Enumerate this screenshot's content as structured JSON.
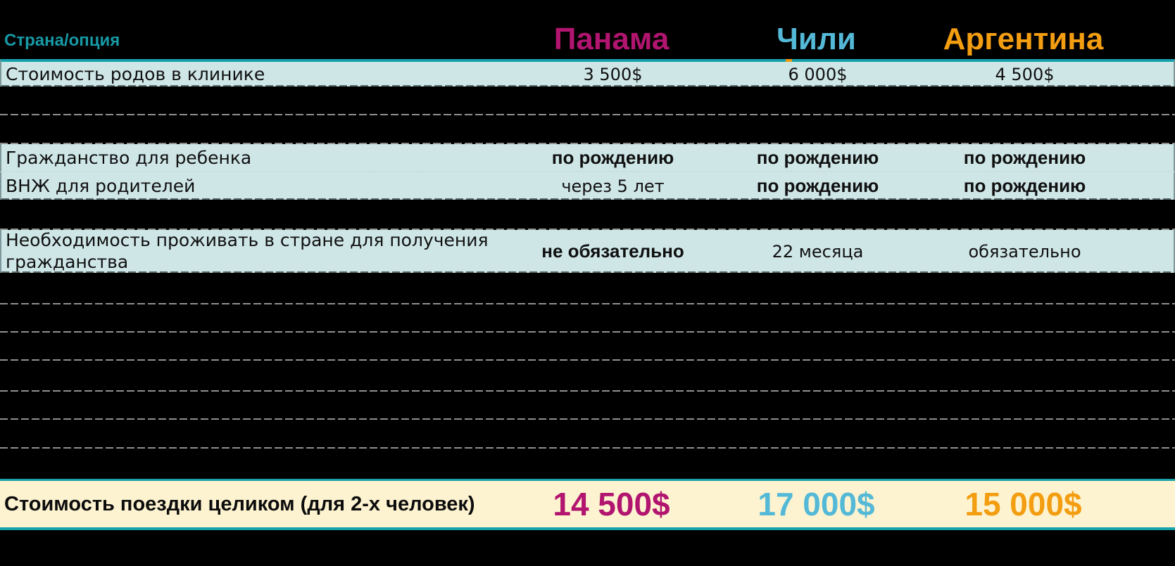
{
  "colors": {
    "accent_teal": "#17a2ac",
    "header_label": "#1899a6",
    "panama": "#b2156f",
    "chile": "#54b9d7",
    "argentina": "#f39d11",
    "row_bg": "#cfe6e7",
    "total_bg": "#fdf3d0"
  },
  "table": {
    "corner_label": "Страна/опция",
    "columns": [
      "Панама",
      "Чили",
      "Аргентина"
    ],
    "rows": [
      {
        "label": "Стоимость родов в клинике",
        "values": [
          "3 500$",
          "6 000$",
          "4 500$"
        ]
      },
      {
        "label": "Гражданство для ребенка",
        "values": [
          "по рождению",
          "по рождению",
          "по рождению"
        ]
      },
      {
        "label": "ВНЖ для родителей",
        "values": [
          "через 5 лет",
          "по рождению",
          "по рождению"
        ]
      },
      {
        "label": "Необходимость проживать в стране для получения гражданства",
        "values": [
          "не обязательно",
          "22 месяца",
          "обязательно"
        ]
      }
    ],
    "total_row": {
      "label": "Стоимость поездки целиком (для 2-х человек)",
      "values": [
        "14 500$",
        "17 000$",
        "15 000$"
      ]
    }
  }
}
